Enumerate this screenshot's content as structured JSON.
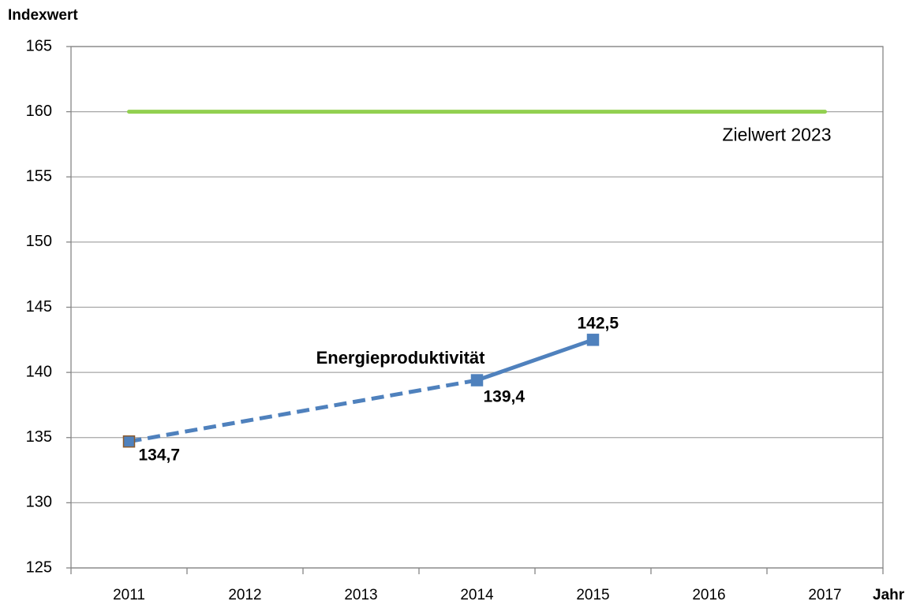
{
  "chart_data": {
    "type": "line",
    "y_axis_label": "Indexwert",
    "x_axis_label": "Jahr",
    "xlim": [
      2010.5,
      2017.5
    ],
    "xticks": [
      2011,
      2012,
      2013,
      2014,
      2015,
      2016,
      2017
    ],
    "ylim": [
      125,
      165
    ],
    "yticks": [
      125,
      130,
      135,
      140,
      145,
      150,
      155,
      160,
      165
    ],
    "grid": true,
    "series": [
      {
        "name": "Energieproduktivität",
        "color": "#4f81bd",
        "x": [
          2011,
          2014,
          2015
        ],
        "values": [
          134.7,
          139.4,
          142.5
        ],
        "value_labels": [
          "134,7",
          "139,4",
          "142,5"
        ],
        "line_styles": [
          "dashed",
          "solid"
        ],
        "marker": "square"
      },
      {
        "name": "Zielwert 2023",
        "color": "#92d050",
        "x": [
          2011,
          2017
        ],
        "values": [
          160,
          160
        ]
      }
    ]
  }
}
